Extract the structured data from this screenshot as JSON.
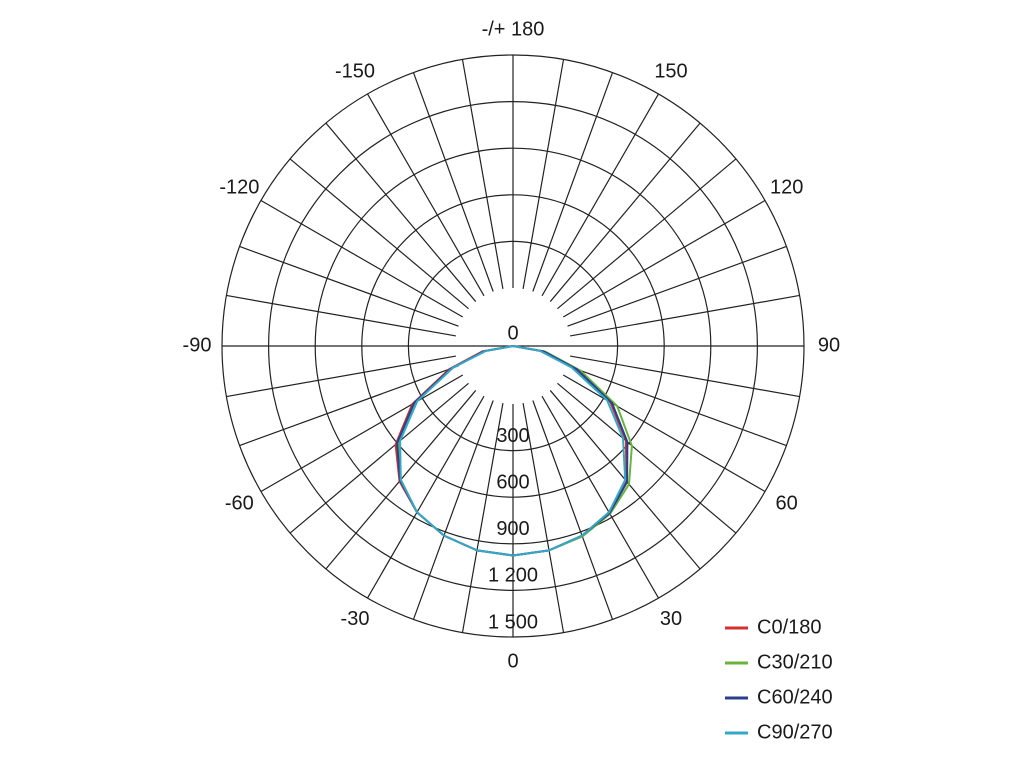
{
  "chart_data": {
    "type": "polar",
    "rlim": [
      0,
      1500
    ],
    "rticks": [
      0,
      300,
      600,
      900,
      {
        "value": 1200,
        "label": "1 200"
      },
      {
        "value": 1500,
        "label": "1 500"
      }
    ],
    "thetaticks": [
      0,
      30,
      60,
      90,
      120,
      150,
      {
        "value": 180,
        "label": "-/+ 180"
      },
      -150,
      -120,
      -90,
      -60,
      -30
    ],
    "theta": [
      -90,
      -80,
      -70,
      -60,
      -50,
      -40,
      -30,
      -20,
      -10,
      0,
      10,
      20,
      30,
      40,
      50,
      60,
      70,
      80,
      90
    ],
    "series": [
      {
        "name": "C0/180",
        "color": "#d2322d",
        "values": [
          0,
          160,
          350,
          600,
          790,
          910,
          990,
          1040,
          1070,
          1080,
          1070,
          1040,
          990,
          910,
          760,
          580,
          340,
          150,
          0
        ]
      },
      {
        "name": "C30/210",
        "color": "#6ab43e",
        "values": [
          0,
          150,
          330,
          580,
          770,
          900,
          990,
          1040,
          1070,
          1080,
          1070,
          1045,
          1000,
          930,
          800,
          620,
          370,
          170,
          0
        ]
      },
      {
        "name": "C60/240",
        "color": "#2b3f8c",
        "values": [
          0,
          150,
          340,
          590,
          780,
          905,
          990,
          1040,
          1070,
          1080,
          1070,
          1040,
          995,
          915,
          770,
          590,
          350,
          160,
          0
        ]
      },
      {
        "name": "C90/270",
        "color": "#35a8c8",
        "values": [
          0,
          140,
          330,
          570,
          760,
          900,
          990,
          1040,
          1070,
          1080,
          1070,
          1040,
          990,
          900,
          740,
          560,
          320,
          140,
          0
        ]
      }
    ]
  }
}
